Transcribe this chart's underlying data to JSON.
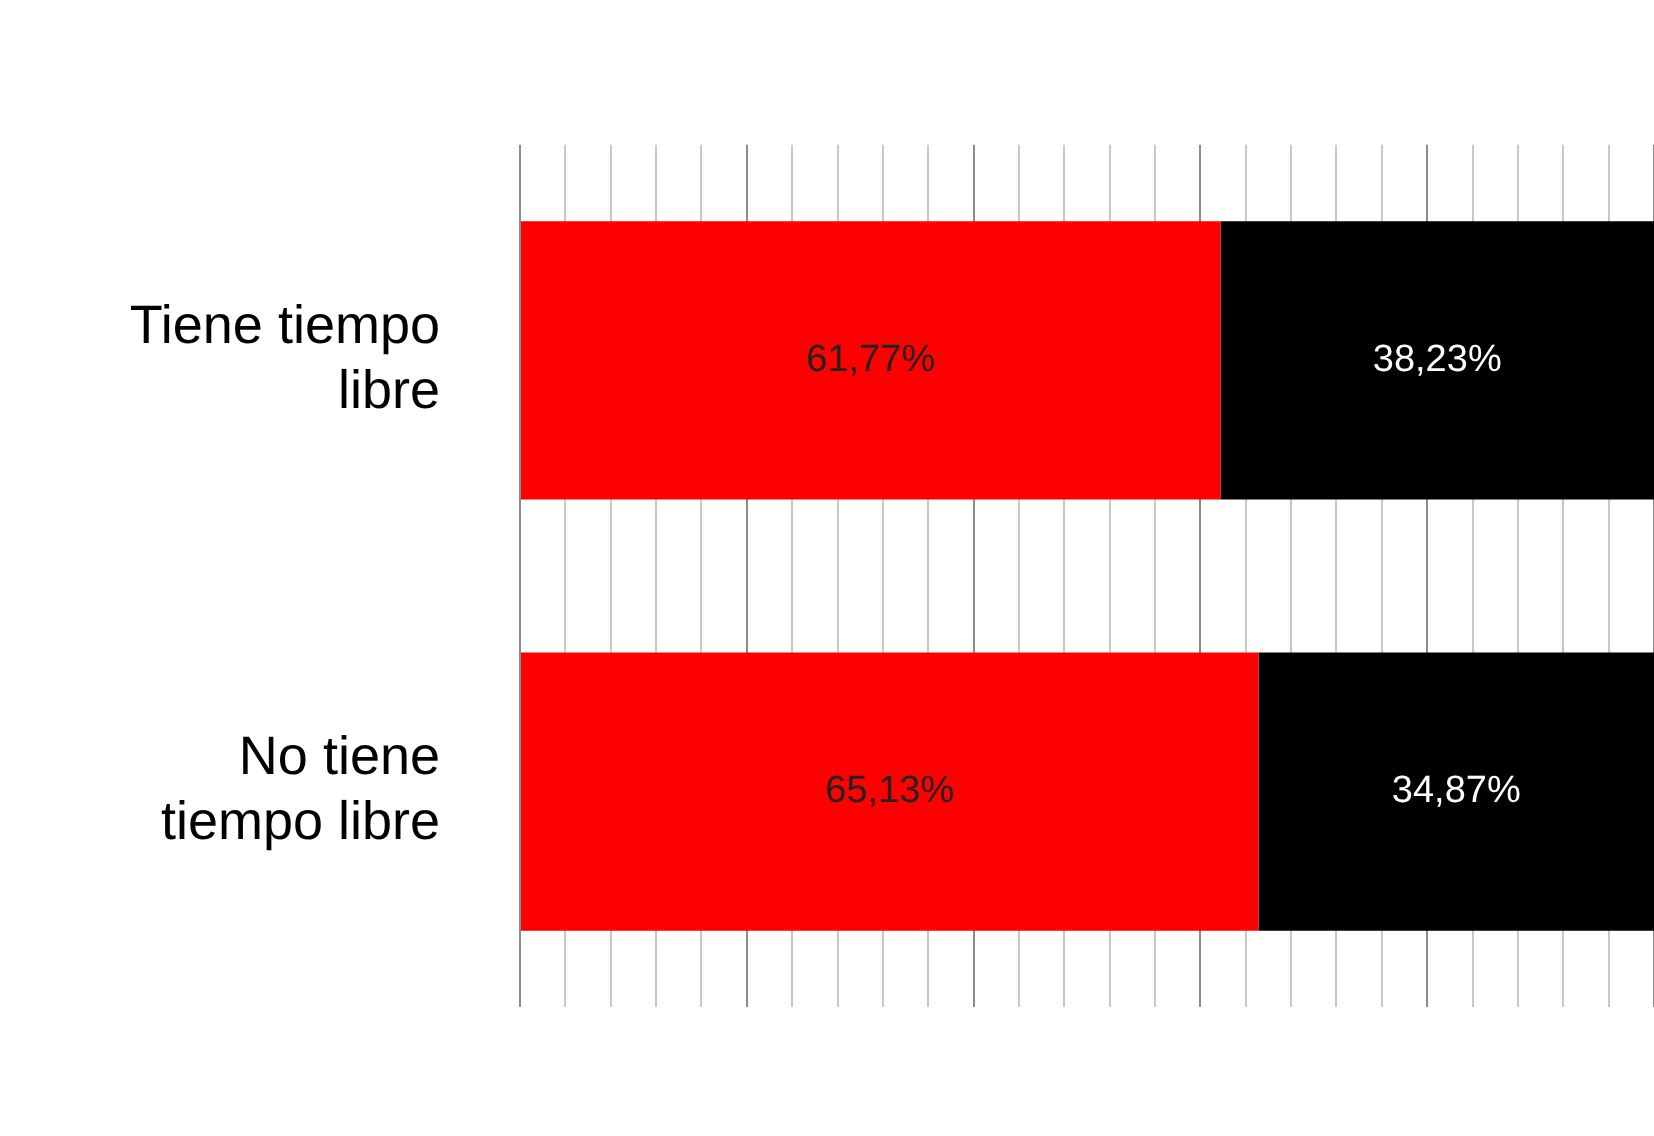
{
  "chart_data": {
    "type": "bar",
    "orientation": "horizontal",
    "stacked": true,
    "categories": [
      "Tiene tiempo libre",
      "No tiene tiempo libre"
    ],
    "series": [
      {
        "color": "#ff0000",
        "values": [
          61.77,
          65.13
        ],
        "value_labels": [
          "61,77%",
          "65,13%"
        ]
      },
      {
        "color": "#000000",
        "values": [
          38.23,
          34.87
        ],
        "value_labels": [
          "38,23%",
          "34,87%"
        ]
      }
    ],
    "xlim": [
      0,
      100
    ],
    "xticks": [
      {
        "value": 0,
        "label": null
      },
      {
        "value": 4,
        "label": null
      },
      {
        "value": 8,
        "label": null
      },
      {
        "value": 12,
        "label": null
      },
      {
        "value": 16,
        "label": null
      },
      {
        "value": 20,
        "label": null
      },
      {
        "value": 24,
        "label": null
      },
      {
        "value": 28,
        "label": null
      },
      {
        "value": 32,
        "label": null
      },
      {
        "value": 36,
        "label": null
      },
      {
        "value": 40,
        "label": null
      },
      {
        "value": 44,
        "label": null
      },
      {
        "value": 48,
        "label": null
      },
      {
        "value": 52,
        "label": null
      },
      {
        "value": 56,
        "label": null
      },
      {
        "value": 60,
        "label": null
      },
      {
        "value": 64,
        "label": null
      },
      {
        "value": 68,
        "label": null
      },
      {
        "value": 72,
        "label": null
      },
      {
        "value": 76,
        "label": null
      },
      {
        "value": 80,
        "label": null
      },
      {
        "value": 84,
        "label": null
      },
      {
        "value": 88,
        "label": null
      },
      {
        "value": 92,
        "label": null
      },
      {
        "value": 96,
        "label": null
      },
      {
        "value": 100,
        "label": null
      }
    ],
    "grid": "x",
    "legend": false,
    "tick_labels": "y"
  }
}
